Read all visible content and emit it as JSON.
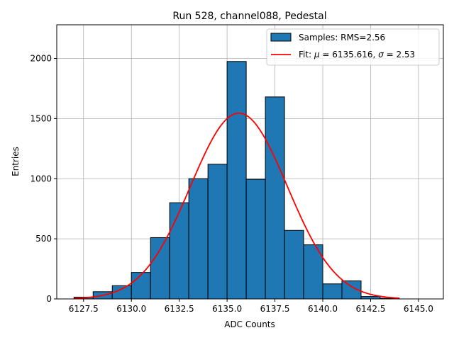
{
  "chart_data": {
    "type": "bar",
    "title": "Run 528, channel088, Pedestal",
    "xlabel": "ADC Counts",
    "ylabel": "Entries",
    "xlim": [
      6126.1,
      6146.3
    ],
    "ylim": [
      0,
      2280
    ],
    "grid": true,
    "legend_position": "top-right",
    "xticks": [
      {
        "value": 6127.5,
        "label": "6127.5"
      },
      {
        "value": 6130.0,
        "label": "6130.0"
      },
      {
        "value": 6132.5,
        "label": "6132.5"
      },
      {
        "value": 6135.0,
        "label": "6135.0"
      },
      {
        "value": 6137.5,
        "label": "6137.5"
      },
      {
        "value": 6140.0,
        "label": "6140.0"
      },
      {
        "value": 6142.5,
        "label": "6142.5"
      },
      {
        "value": 6145.0,
        "label": "6145.0"
      }
    ],
    "yticks": [
      {
        "value": 0,
        "label": "0"
      },
      {
        "value": 500,
        "label": "500"
      },
      {
        "value": 1000,
        "label": "1000"
      },
      {
        "value": 1500,
        "label": "1500"
      },
      {
        "value": 2000,
        "label": "2000"
      }
    ],
    "series": [
      {
        "name": "Samples: RMS=2.56",
        "kind": "histogram",
        "color": "#1f77b4",
        "edgecolor": "#000000",
        "bins": [
          {
            "x0": 6127.0,
            "x1": 6128.0,
            "count": 15
          },
          {
            "x0": 6128.0,
            "x1": 6129.0,
            "count": 60
          },
          {
            "x0": 6129.0,
            "x1": 6130.0,
            "count": 110
          },
          {
            "x0": 6130.0,
            "x1": 6131.0,
            "count": 220
          },
          {
            "x0": 6131.0,
            "x1": 6132.0,
            "count": 510
          },
          {
            "x0": 6132.0,
            "x1": 6133.0,
            "count": 800
          },
          {
            "x0": 6133.0,
            "x1": 6134.0,
            "count": 1000
          },
          {
            "x0": 6134.0,
            "x1": 6135.0,
            "count": 1120
          },
          {
            "x0": 6135.0,
            "x1": 6136.0,
            "count": 1975
          },
          {
            "x0": 6136.0,
            "x1": 6137.0,
            "count": 995
          },
          {
            "x0": 6137.0,
            "x1": 6138.0,
            "count": 1680
          },
          {
            "x0": 6138.0,
            "x1": 6139.0,
            "count": 570
          },
          {
            "x0": 6139.0,
            "x1": 6140.0,
            "count": 450
          },
          {
            "x0": 6140.0,
            "x1": 6141.0,
            "count": 125
          },
          {
            "x0": 6141.0,
            "x1": 6142.0,
            "count": 150
          },
          {
            "x0": 6142.0,
            "x1": 6143.0,
            "count": 20
          },
          {
            "x0": 6143.0,
            "x1": 6144.0,
            "count": 5
          }
        ]
      },
      {
        "name_prefix": "Fit: ",
        "name_mu_symbol": "μ",
        "name_mu_text": " = 6135.616, ",
        "name_sigma_symbol": "σ",
        "name_sigma_text": " = 2.53",
        "kind": "gaussian",
        "color": "#ff0000",
        "mu": 6135.616,
        "sigma": 2.53,
        "amplitude": 1545,
        "x_range": [
          6127.0,
          6144.0
        ]
      }
    ]
  }
}
